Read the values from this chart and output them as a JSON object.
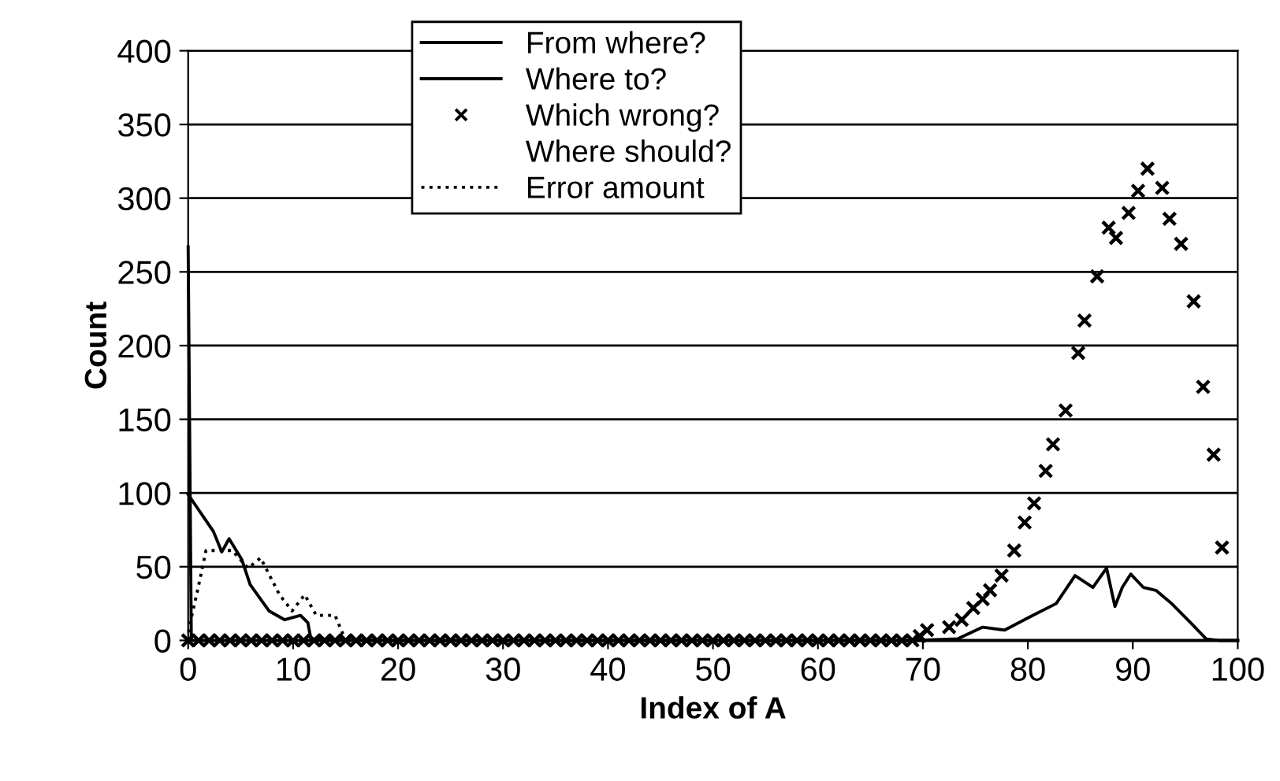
{
  "chart_data": {
    "type": "line",
    "xlabel": "Index of A",
    "ylabel": "Count",
    "xlim": [
      0,
      100
    ],
    "xticks": [
      0,
      10,
      20,
      30,
      40,
      50,
      60,
      70,
      80,
      90,
      100
    ],
    "ylim": [
      0,
      400
    ],
    "yticks": [
      0,
      50,
      100,
      150,
      200,
      250,
      300,
      350,
      400
    ],
    "grid": "y",
    "legend": "top",
    "series": [
      {
        "name": "From where?",
        "color": "#000000",
        "line_style": "solid",
        "x": [
          0,
          0.3,
          20,
          40,
          60,
          69.2,
          73.3,
          75.7,
          77.8,
          80.2,
          82.7,
          84.5,
          86.2,
          87.5,
          88.3,
          89,
          89.8,
          91,
          92.2,
          93.7,
          95.5,
          97,
          98.2,
          100
        ],
        "values": [
          267,
          0,
          0,
          0,
          0,
          0,
          1,
          9,
          7,
          16,
          25,
          44,
          36,
          49,
          23,
          36,
          45,
          36,
          34,
          25,
          12,
          1,
          0,
          0
        ]
      },
      {
        "name": "Where to?",
        "color": "#000000",
        "line_style": "solid",
        "x": [
          0,
          2.4,
          3.2,
          3.9,
          5.1,
          5.9,
          7.7,
          9.2,
          10.7,
          11.4,
          11.7,
          20,
          40,
          60,
          80,
          100
        ],
        "values": [
          99,
          74,
          60,
          69,
          55,
          38,
          20,
          14,
          17,
          12,
          1,
          0,
          0,
          0,
          0,
          0
        ]
      },
      {
        "name": "Which wrong?",
        "type": "scatter",
        "color": "#000000",
        "marker": "cross",
        "x": [
          0,
          1,
          2,
          3,
          4,
          5,
          6,
          7,
          8,
          9,
          10,
          11,
          12,
          13,
          14,
          15,
          16,
          17,
          18,
          19,
          20,
          21,
          22,
          23,
          24,
          25,
          26,
          27,
          28,
          29,
          30,
          31,
          32,
          33,
          34,
          35,
          36,
          37,
          38,
          39,
          40,
          41,
          42,
          43,
          44,
          45,
          46,
          47,
          48,
          49,
          50,
          51,
          52,
          53,
          54,
          55,
          56,
          57,
          58,
          59,
          60,
          61,
          62,
          63,
          64,
          65,
          66,
          67,
          68,
          69,
          69.7,
          70.4,
          72.5,
          73.7,
          74.8,
          75.7,
          76.4,
          77.5,
          78.7,
          79.7,
          80.6,
          81.7,
          82.4,
          83.6,
          84.8,
          85.4,
          86.6,
          87.7,
          88.4,
          89.6,
          90.5,
          91.4,
          92.8,
          93.5,
          94.6,
          95.8,
          96.7,
          97.7,
          98.5
        ],
        "values": [
          0,
          0,
          0,
          0,
          0,
          0,
          0,
          0,
          0,
          0,
          0,
          0,
          0,
          0,
          0,
          0,
          0,
          0,
          0,
          0,
          0,
          0,
          0,
          0,
          0,
          0,
          0,
          0,
          0,
          0,
          0,
          0,
          0,
          0,
          0,
          0,
          0,
          0,
          0,
          0,
          0,
          0,
          0,
          0,
          0,
          0,
          0,
          0,
          0,
          0,
          0,
          0,
          0,
          0,
          0,
          0,
          0,
          0,
          0,
          0,
          0,
          0,
          0,
          0,
          0,
          0,
          0,
          0,
          0,
          0,
          3,
          7,
          9,
          14,
          22,
          28,
          34,
          44,
          61,
          80,
          93,
          115,
          133,
          156,
          195,
          217,
          247,
          280,
          273,
          290,
          305,
          320,
          307,
          286,
          269,
          230,
          172,
          126,
          63
        ]
      },
      {
        "name": "Where should?"
      },
      {
        "name": "Error amount",
        "color": "#000000",
        "line_style": "dotted",
        "x": [
          0,
          0.1,
          0.9,
          1.7,
          4.2,
          5.7,
          6.9,
          8.7,
          9.9,
          11.1,
          12.2,
          14,
          14.7,
          15.2,
          20
        ],
        "values": [
          0,
          9,
          34,
          61,
          61,
          49,
          56,
          31,
          20,
          31,
          17,
          17,
          5,
          0,
          0
        ]
      }
    ]
  }
}
